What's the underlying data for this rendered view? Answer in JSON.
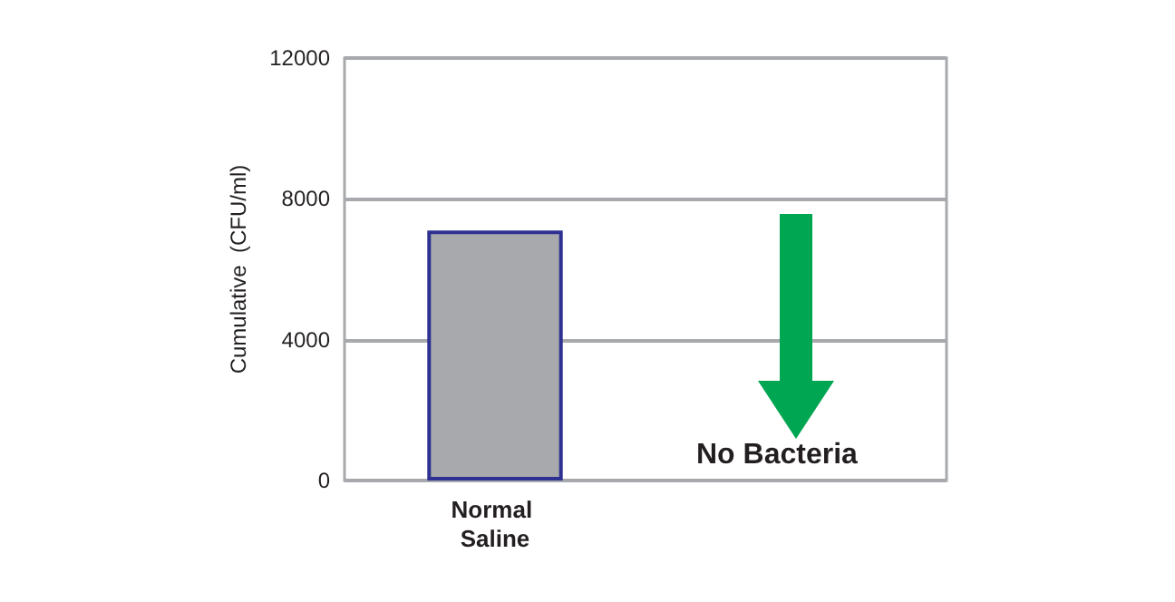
{
  "chart_data": {
    "type": "bar",
    "categories": [
      "Normal Saline",
      null
    ],
    "values": [
      7100,
      0
    ],
    "color": "#a7a9ac",
    "ylabel": "Cumulative  (CFU/ml)",
    "ylim": [
      0,
      12000
    ],
    "yticks": [
      0,
      4000,
      8000,
      12000
    ],
    "grid": "y",
    "annotations": [
      "No Bacteria"
    ]
  }
}
